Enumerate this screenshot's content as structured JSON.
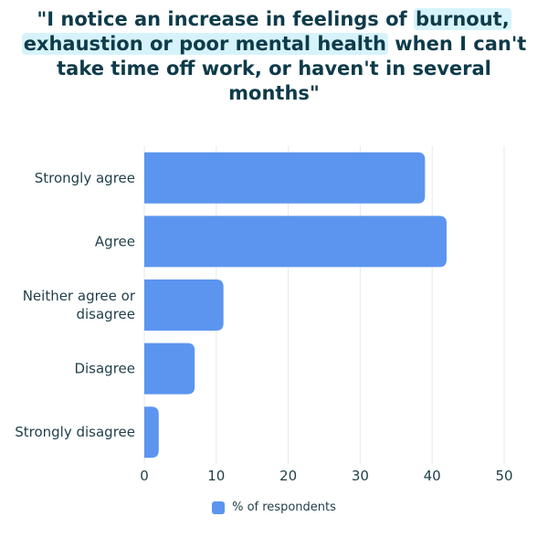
{
  "title": {
    "part1": "\"I notice an increase in feelings of ",
    "highlight1": "burnout,",
    "part2": " ",
    "highlight2": "exhaustion or poor mental health",
    "part3": " when I can't take time off work, or haven't in several months\""
  },
  "colors": {
    "bar": "#5b95ef",
    "title": "#0d3b4a",
    "highlight": "#d6f3fb",
    "grid": "#e6e8eb",
    "text": "#1f3e4a"
  },
  "chart_data": {
    "type": "bar",
    "orientation": "horizontal",
    "categories": [
      "Strongly agree",
      "Agree",
      "Neither agree or disagree",
      "Disagree",
      "Strongly disagree"
    ],
    "category_lines": [
      [
        "Strongly agree"
      ],
      [
        "Agree"
      ],
      [
        "Neither agree or",
        "disagree"
      ],
      [
        "Disagree"
      ],
      [
        "Strongly disagree"
      ]
    ],
    "series": [
      {
        "name": "% of respondents",
        "values": [
          39,
          42,
          11,
          7,
          2
        ]
      }
    ],
    "xlim": [
      0,
      50
    ],
    "xticks": [
      0,
      10,
      20,
      30,
      40,
      50
    ],
    "grid": true,
    "legend_position": "bottom"
  }
}
